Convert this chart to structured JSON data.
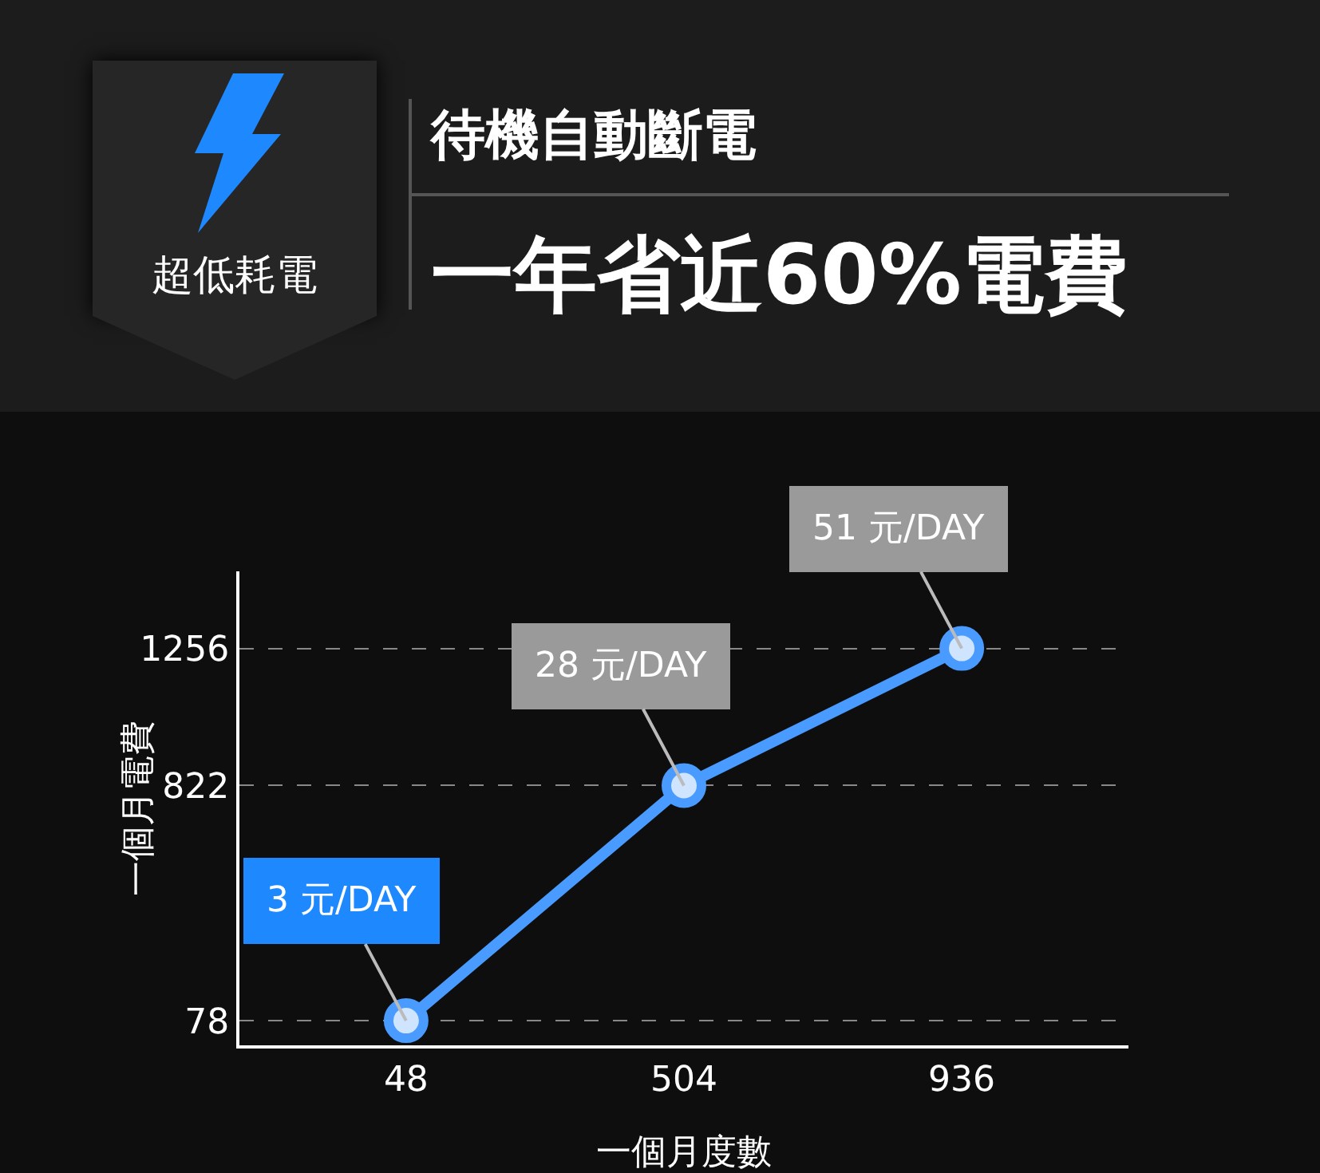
{
  "chart_data": {
    "type": "line",
    "title": "待機自動斷電",
    "subtitle": "一年省近60%電費",
    "annotations": [
      "超低耗電",
      {
        "text": "3 元/DAY",
        "x": "48",
        "y": 78
      },
      {
        "text": "28 元/DAY",
        "x": "504",
        "y": 822
      },
      {
        "text": "51 元/DAY",
        "x": "936",
        "y": 1256
      }
    ],
    "xlabel": "一個月度數",
    "ylabel": "一個月電費",
    "categories": [
      "48",
      "504",
      "936"
    ],
    "series": [
      {
        "color": "#4a9bff",
        "values": [
          78,
          822,
          1256
        ]
      }
    ],
    "ylim": [
      0,
      1500
    ],
    "yticks": [
      78,
      822,
      1256
    ],
    "grid": "y",
    "marker": "circle",
    "line_style": "solid"
  }
}
